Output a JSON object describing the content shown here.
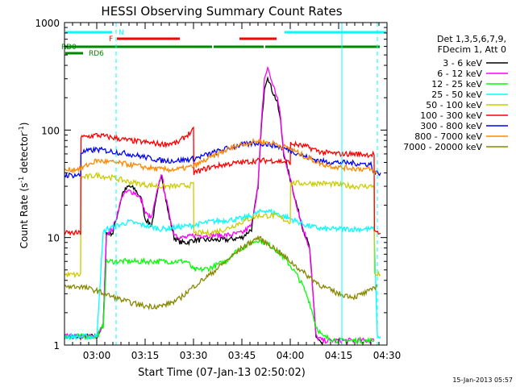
{
  "chart_data": {
    "type": "line",
    "title": "HESSI Observing Summary Count Rates",
    "xlabel": "Start Time (07-Jan-13 02:50:02)",
    "ylabel_main": "Count Rate (s",
    "ylabel_sup1": "-1",
    "ylabel_mid": " detector",
    "ylabel_sup2": "-1",
    "ylabel_end": ")",
    "y_scale": "log",
    "ylim": [
      1,
      1000
    ],
    "xlim_minutes_after_0250": [
      0,
      100
    ],
    "x_ticks": [
      {
        "minutes_after_0250": 10,
        "label": "03:00"
      },
      {
        "minutes_after_0250": 25,
        "label": "03:15"
      },
      {
        "minutes_after_0250": 40,
        "label": "03:30"
      },
      {
        "minutes_after_0250": 55,
        "label": "03:45"
      },
      {
        "minutes_after_0250": 70,
        "label": "04:00"
      },
      {
        "minutes_after_0250": 85,
        "label": "04:15"
      },
      {
        "minutes_after_0250": 100,
        "label": "04:30"
      }
    ],
    "y_ticks": [
      {
        "value": 1,
        "label": "1"
      },
      {
        "value": 10,
        "label": "10"
      },
      {
        "value": 100,
        "label": "100"
      },
      {
        "value": 1000,
        "label": "1000"
      }
    ],
    "legend_placement": "right",
    "legend_header": [
      "Det 1,3,5,6,7,9,",
      "FDecim 1, Att 0"
    ],
    "series": [
      {
        "name": "3 - 6 keV",
        "color": "#000000",
        "x": [
          0,
          5,
          10,
          12,
          13,
          15,
          18,
          20,
          22,
          24,
          25,
          27,
          30,
          32,
          34,
          36,
          38,
          40,
          45,
          50,
          55,
          58,
          60,
          61,
          62,
          63,
          64,
          66,
          67,
          68,
          70,
          72,
          74,
          76,
          78,
          80
        ],
        "y": [
          1.2,
          1.2,
          1.2,
          1.5,
          11,
          11,
          26,
          30,
          28,
          22,
          15,
          13,
          40,
          18,
          10,
          9,
          9,
          9.5,
          9.5,
          9.5,
          10,
          12,
          30,
          100,
          250,
          320,
          250,
          180,
          120,
          60,
          35,
          20,
          12,
          8,
          1.2,
          1
        ]
      },
      {
        "name": "6 - 12 keV",
        "color": "#ff00ff",
        "x": [
          0,
          5,
          10,
          12,
          13,
          15,
          18,
          20,
          22,
          24,
          25,
          27,
          30,
          32,
          34,
          36,
          38,
          40,
          45,
          50,
          55,
          58,
          60,
          61,
          62,
          63,
          64,
          66,
          67,
          68,
          70,
          72,
          74,
          76,
          78,
          80,
          84,
          88,
          92,
          96
        ],
        "y": [
          1.2,
          1.2,
          1.2,
          1.5,
          11,
          12,
          25,
          27,
          26,
          22,
          17,
          15,
          40,
          19,
          11,
          10,
          10,
          10.5,
          10.5,
          10.5,
          11,
          13,
          30,
          110,
          300,
          380,
          300,
          200,
          130,
          60,
          35,
          20,
          12,
          8,
          1.2,
          1.1,
          1.1,
          1.1,
          1.1,
          1.1
        ]
      },
      {
        "name": "12 - 25 keV",
        "color": "#00ff00",
        "x": [
          0,
          5,
          10,
          12,
          13,
          20,
          30,
          38,
          40,
          42,
          45,
          50,
          52,
          55,
          58,
          60,
          62,
          65,
          68,
          70,
          72,
          74,
          76,
          78,
          80,
          85,
          90,
          96
        ],
        "y": [
          1.2,
          1.2,
          1.2,
          1.5,
          6,
          6,
          6,
          6,
          5,
          5,
          5.2,
          6,
          7,
          8,
          9,
          9.5,
          9,
          8,
          6.5,
          5.5,
          4.5,
          3.5,
          2.5,
          1.5,
          1.2,
          1.1,
          1.1,
          1.1
        ]
      },
      {
        "name": "25 - 50 keV",
        "color": "#00ffff",
        "x": [
          0,
          5,
          10,
          12,
          13,
          20,
          30,
          40,
          45,
          50,
          55,
          58,
          60,
          62,
          65,
          70,
          75,
          80,
          85,
          90,
          96,
          97,
          98
        ],
        "y": [
          1.2,
          1.2,
          1.2,
          11,
          12,
          14,
          12,
          13,
          14,
          14.5,
          15,
          16,
          17,
          18,
          17,
          15,
          13,
          12,
          12,
          12,
          12,
          1.2,
          1.2
        ]
      },
      {
        "name": "50 - 100 keV",
        "color": "#cccc00",
        "x": [
          0,
          5,
          5.1,
          10,
          15,
          20,
          25,
          30,
          35,
          40,
          40.1,
          45,
          50,
          55,
          60,
          65,
          70,
          70.1,
          75,
          80,
          85,
          90,
          95,
          96,
          96.1,
          98
        ],
        "y": [
          4.5,
          4.5,
          36,
          38,
          36,
          33,
          31,
          30,
          30,
          31,
          11,
          11,
          12,
          14,
          16,
          16,
          14,
          32,
          32,
          32,
          31,
          30,
          30,
          30,
          4.5,
          4.5
        ]
      },
      {
        "name": "100 - 300 keV",
        "color": "#ff0000",
        "x": [
          0,
          5,
          5.1,
          10,
          15,
          20,
          25,
          30,
          35,
          40,
          40.1,
          45,
          50,
          55,
          60,
          65,
          70,
          70.1,
          75,
          80,
          85,
          90,
          95,
          96,
          96.1,
          98
        ],
        "y": [
          11,
          11,
          85,
          90,
          85,
          80,
          77,
          74,
          76,
          100,
          40,
          45,
          48,
          50,
          52,
          52,
          50,
          75,
          70,
          62,
          60,
          60,
          59,
          60,
          11,
          11
        ]
      },
      {
        "name": "300 - 800 keV",
        "color": "#0000ff",
        "x": [
          0,
          5,
          5.1,
          10,
          15,
          20,
          25,
          30,
          35,
          40,
          45,
          50,
          55,
          60,
          65,
          70,
          75,
          80,
          85,
          90,
          95,
          96,
          97,
          98
        ],
        "y": [
          38,
          38,
          62,
          66,
          63,
          60,
          56,
          52,
          52,
          54,
          60,
          67,
          73,
          76,
          72,
          65,
          56,
          51,
          50,
          49,
          48,
          40,
          40,
          40
        ]
      },
      {
        "name": "800 - 7000 keV",
        "color": "#ff8800",
        "x": [
          0,
          5,
          10,
          15,
          20,
          25,
          30,
          35,
          40,
          45,
          50,
          55,
          60,
          65,
          70,
          75,
          80,
          85,
          90,
          95,
          96,
          97
        ],
        "y": [
          42,
          44,
          52,
          50,
          48,
          45,
          43,
          43,
          46,
          55,
          65,
          74,
          79,
          75,
          67,
          56,
          48,
          45,
          44,
          43,
          40,
          40
        ]
      },
      {
        "name": "7000 - 20000 keV",
        "color": "#888800",
        "x": [
          0,
          5,
          10,
          15,
          20,
          25,
          30,
          35,
          40,
          45,
          50,
          55,
          60,
          65,
          70,
          75,
          80,
          85,
          90,
          95,
          96,
          97
        ],
        "y": [
          3.5,
          3.5,
          3.2,
          2.8,
          2.5,
          2.3,
          2.3,
          2.6,
          3.5,
          4.5,
          6,
          8,
          10,
          8,
          6,
          4.5,
          3.5,
          3,
          2.8,
          3.2,
          3.5,
          3.5
        ]
      }
    ],
    "flag_bars": {
      "labels": {
        "n": "N",
        "f": "F",
        "rd0": "RD0",
        "rd6": "RD6"
      },
      "night": {
        "color": "#00ffff",
        "intervals": [
          [
            0,
            15
          ],
          [
            68,
            100
          ]
        ]
      },
      "flare": {
        "color": "#ff0000",
        "intervals": [
          [
            16,
            36
          ],
          [
            54,
            66
          ]
        ]
      },
      "rd0": {
        "color": "#008800",
        "intervals": [
          [
            0,
            46
          ],
          [
            46,
            62
          ],
          [
            62,
            98
          ]
        ]
      },
      "rd6": {
        "color": "#008800",
        "intervals": [
          [
            0,
            6
          ]
        ]
      }
    },
    "vertical_markers": [
      {
        "minutes_after_0250": 16,
        "color": "#00ffff",
        "style": "dashed"
      },
      {
        "minutes_after_0250": 86,
        "color": "#00ffff",
        "style": "solid"
      },
      {
        "minutes_after_0250": 97,
        "color": "#00ffff",
        "style": "dashed"
      }
    ]
  },
  "footer": {
    "timestamp": "15-Jan-2013 05:57"
  }
}
